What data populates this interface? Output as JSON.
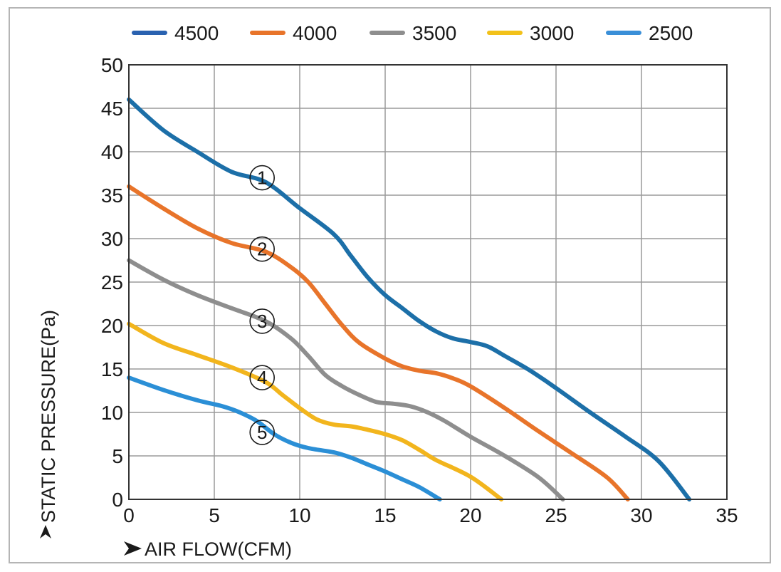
{
  "chart_data": {
    "type": "line",
    "xlabel": "AIR FLOW(CFM)",
    "ylabel": "STATIC PRESSURE(Pa)",
    "xlim": [
      0,
      35
    ],
    "ylim": [
      0,
      50
    ],
    "x_ticks": [
      0,
      5,
      10,
      15,
      20,
      25,
      30,
      35
    ],
    "y_ticks": [
      0,
      5,
      10,
      15,
      20,
      25,
      30,
      35,
      40,
      45,
      50
    ],
    "grid": true,
    "legend_position": "top",
    "series": [
      {
        "name": "4500",
        "color": "#1c6fa8",
        "legend_color": "#2a62b0",
        "marker": "1",
        "marker_at": [
          7.8,
          37.0
        ],
        "points": [
          [
            0,
            46
          ],
          [
            2,
            42.5
          ],
          [
            4,
            40
          ],
          [
            6,
            37.7
          ],
          [
            8,
            36.5
          ],
          [
            10,
            33.5
          ],
          [
            12,
            30.5
          ],
          [
            13,
            28
          ],
          [
            14,
            25.5
          ],
          [
            15,
            23.5
          ],
          [
            16,
            22
          ],
          [
            17,
            20.5
          ],
          [
            18,
            19.3
          ],
          [
            19,
            18.5
          ],
          [
            20,
            18.1
          ],
          [
            21,
            17.6
          ],
          [
            22,
            16.5
          ],
          [
            23.5,
            14.8
          ],
          [
            25,
            12.8
          ],
          [
            27,
            10
          ],
          [
            29,
            7.3
          ],
          [
            31,
            4.4
          ],
          [
            32.8,
            0
          ]
        ]
      },
      {
        "name": "4000",
        "color": "#e8742a",
        "legend_color": "#e8742a",
        "marker": "2",
        "marker_at": [
          7.8,
          28.8
        ],
        "points": [
          [
            0,
            36
          ],
          [
            2,
            33.5
          ],
          [
            4,
            31.2
          ],
          [
            6,
            29.5
          ],
          [
            8,
            28.5
          ],
          [
            9.5,
            26.7
          ],
          [
            10.5,
            25
          ],
          [
            11.5,
            22.5
          ],
          [
            12.5,
            20
          ],
          [
            13.5,
            18
          ],
          [
            15,
            16.2
          ],
          [
            16,
            15.3
          ],
          [
            17,
            14.8
          ],
          [
            18,
            14.5
          ],
          [
            19,
            13.9
          ],
          [
            20,
            13
          ],
          [
            22,
            10.5
          ],
          [
            24,
            7.8
          ],
          [
            26,
            5.2
          ],
          [
            28,
            2.5
          ],
          [
            29.2,
            0
          ]
        ]
      },
      {
        "name": "3500",
        "color": "#8e8e8e",
        "legend_color": "#8e8e8e",
        "marker": "3",
        "marker_at": [
          7.8,
          20.5
        ],
        "points": [
          [
            0,
            27.5
          ],
          [
            2,
            25.3
          ],
          [
            4,
            23.5
          ],
          [
            6,
            22
          ],
          [
            8,
            20.5
          ],
          [
            9.5,
            18.5
          ],
          [
            10.5,
            16.5
          ],
          [
            11.5,
            14.3
          ],
          [
            12.5,
            13
          ],
          [
            13.5,
            12
          ],
          [
            14.5,
            11.2
          ],
          [
            15.5,
            11
          ],
          [
            16.5,
            10.7
          ],
          [
            17.5,
            10
          ],
          [
            18.5,
            9
          ],
          [
            20,
            7.2
          ],
          [
            22,
            5
          ],
          [
            24,
            2.5
          ],
          [
            25.4,
            0
          ]
        ]
      },
      {
        "name": "3000",
        "color": "#f2b51d",
        "legend_color": "#f2c11a",
        "marker": "4",
        "marker_at": [
          7.8,
          14.0
        ],
        "points": [
          [
            0,
            20.2
          ],
          [
            2,
            18
          ],
          [
            4,
            16.6
          ],
          [
            6,
            15.2
          ],
          [
            8,
            13.5
          ],
          [
            9,
            12
          ],
          [
            10,
            10.5
          ],
          [
            11,
            9.2
          ],
          [
            12,
            8.6
          ],
          [
            13,
            8.4
          ],
          [
            14,
            8
          ],
          [
            15,
            7.5
          ],
          [
            16,
            6.8
          ],
          [
            17,
            5.7
          ],
          [
            18,
            4.5
          ],
          [
            20,
            2.6
          ],
          [
            21.8,
            0
          ]
        ]
      },
      {
        "name": "2500",
        "color": "#2b8fd6",
        "legend_color": "#3a8fd8",
        "marker": "5",
        "marker_at": [
          7.8,
          7.7
        ],
        "points": [
          [
            0,
            14
          ],
          [
            2,
            12.6
          ],
          [
            4,
            11.4
          ],
          [
            5.5,
            10.7
          ],
          [
            6.5,
            10
          ],
          [
            7.5,
            9
          ],
          [
            8.5,
            7.5
          ],
          [
            9.5,
            6.5
          ],
          [
            10.5,
            5.9
          ],
          [
            12,
            5.4
          ],
          [
            13,
            4.8
          ],
          [
            14,
            4
          ],
          [
            15,
            3.2
          ],
          [
            16,
            2.3
          ],
          [
            17,
            1.4
          ],
          [
            18.2,
            0
          ]
        ]
      }
    ]
  }
}
